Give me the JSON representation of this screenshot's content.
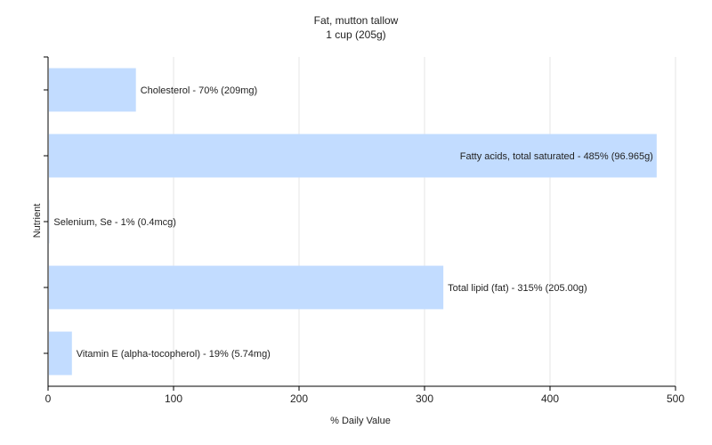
{
  "chart_data": {
    "type": "bar",
    "orientation": "horizontal",
    "title": "Fat, mutton tallow",
    "subtitle": "1 cup (205g)",
    "xlabel": "% Daily Value",
    "ylabel": "Nutrient",
    "xlim": [
      0,
      500
    ],
    "xticks": [
      0,
      100,
      200,
      300,
      400,
      500
    ],
    "grid": true,
    "categories": [
      "Cholesterol",
      "Fatty acids, total saturated",
      "Selenium, Se",
      "Total lipid (fat)",
      "Vitamin E (alpha-tocopherol)"
    ],
    "values": [
      70,
      485,
      1,
      315,
      19
    ],
    "bar_labels": [
      "Cholesterol - 70% (209mg)",
      "Fatty acids, total saturated - 485% (96.965g)",
      "Selenium, Se - 1% (0.4mcg)",
      "Total lipid (fat) - 315% (205.00g)",
      "Vitamin E (alpha-tocopherol) - 19% (5.74mg)"
    ],
    "colors": {
      "bar": "#c2dcff",
      "grid": "#e6e6e6",
      "axis": "#000000"
    }
  }
}
